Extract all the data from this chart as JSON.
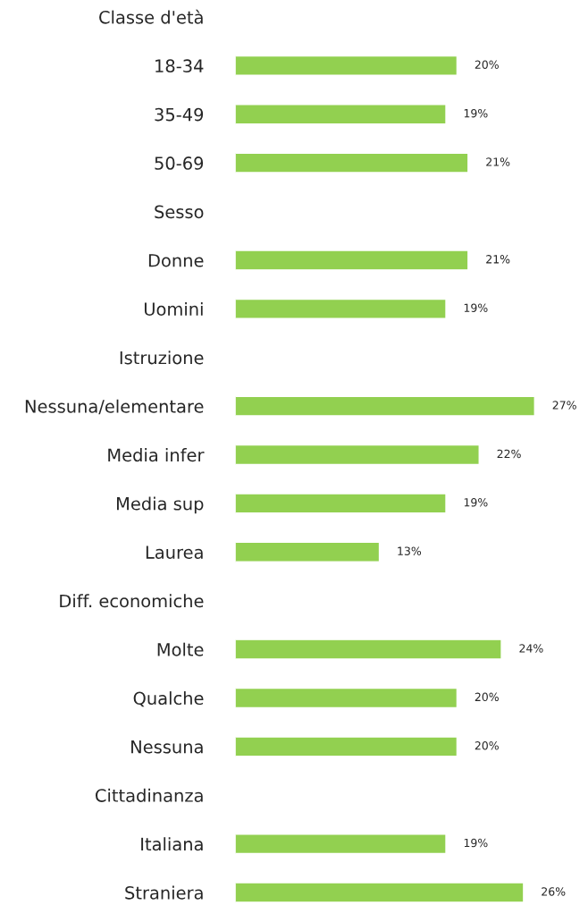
{
  "chart_data": {
    "type": "bar",
    "orientation": "horizontal",
    "categories": [
      "Classe d'età",
      "18-34",
      "35-49",
      "50-69",
      "Sesso",
      "Donne",
      "Uomini",
      "Istruzione",
      "Nessuna/elementare",
      "Media infer",
      "Media sup",
      "Laurea",
      "Diff. economiche",
      "Molte",
      "Qualche",
      "Nessuna",
      "Cittadinanza",
      "Italiana",
      "Straniera"
    ],
    "values": [
      null,
      20,
      19,
      21,
      null,
      21,
      19,
      null,
      27,
      22,
      19,
      13,
      null,
      24,
      20,
      20,
      null,
      19,
      26
    ],
    "value_labels": [
      null,
      "20%",
      "19%",
      "21%",
      null,
      "21%",
      "19%",
      null,
      "27%",
      "22%",
      "19%",
      "13%",
      null,
      "24%",
      "20%",
      "20%",
      null,
      "19%",
      "26%"
    ],
    "color": "#92d050",
    "grid": false,
    "legend": false,
    "tick_labels": "y"
  }
}
